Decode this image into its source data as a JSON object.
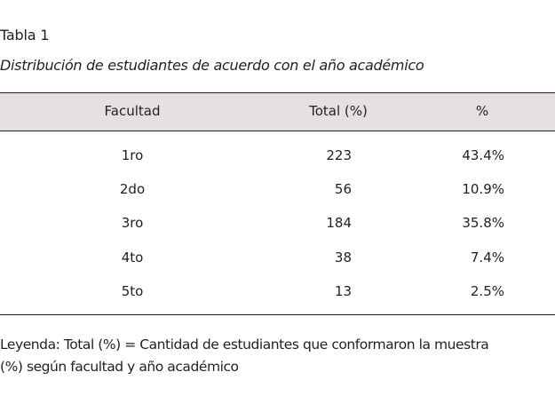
{
  "document": {
    "table_label": "Tabla 1",
    "table_caption": "Distribución de estudiantes de acuerdo con el  año académico",
    "legend_line1": "Leyenda: Total (%) = Cantidad de estudiantes que conformaron la muestra",
    "legend_line2": "(%) según facultad y año académico"
  },
  "table": {
    "headers": [
      "Facultad",
      "Total (%)",
      "%"
    ],
    "rows": [
      [
        "1ro",
        "223",
        "43.4%"
      ],
      [
        "2do",
        "56",
        "10.9%"
      ],
      [
        "3ro",
        "184",
        "35.8%"
      ],
      [
        "4to",
        "38",
        "7.4%"
      ],
      [
        "5to",
        "13",
        "2.5%"
      ]
    ]
  },
  "colors": {
    "header_background": "#e6e1e0",
    "rule": "#231f20",
    "text": "#231f20"
  }
}
